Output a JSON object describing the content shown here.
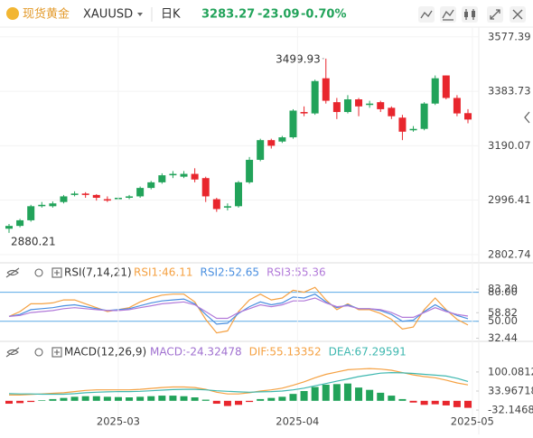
{
  "header": {
    "name": "现货黄金",
    "symbol": "XAUUSD",
    "period": "日K",
    "price": "3283.27",
    "change": "-23.09",
    "change_pct": "-0.70%"
  },
  "chart_data": [
    {
      "type": "candlestick",
      "open": [
        2895,
        2905,
        2925,
        2975,
        2975,
        2990,
        3015,
        3020,
        3015,
        3000,
        3000,
        3005,
        3010,
        3040,
        3060,
        3085,
        3080,
        3090,
        3075,
        3000,
        2970,
        2975,
        3060,
        3140,
        3210,
        3205,
        3220,
        3310,
        3305,
        3430,
        3345,
        3310,
        3355,
        3335,
        3345,
        3325,
        3290,
        3245,
        3250,
        3340,
        3440,
        3360,
        3306
      ],
      "high": [
        2912,
        2930,
        2980,
        2990,
        2992,
        3015,
        3028,
        3025,
        3018,
        3010,
        3010,
        3015,
        3045,
        3065,
        3092,
        3100,
        3100,
        3110,
        3080,
        3005,
        2985,
        3065,
        3150,
        3215,
        3215,
        3225,
        3320,
        3330,
        3425,
        3499.93,
        3360,
        3370,
        3360,
        3350,
        3350,
        3330,
        3300,
        3260,
        3345,
        3440,
        3440,
        3370,
        3320
      ],
      "low": [
        2880.21,
        2900,
        2920,
        2970,
        2970,
        2985,
        3010,
        3005,
        2995,
        2990,
        2995,
        3000,
        3005,
        3035,
        3055,
        3075,
        3075,
        3060,
        2990,
        2955,
        2960,
        2970,
        3055,
        3135,
        3180,
        3200,
        3215,
        3295,
        3300,
        3340,
        3285,
        3305,
        3295,
        3325,
        3310,
        3285,
        3210,
        3240,
        3245,
        3335,
        3355,
        3295,
        3270
      ],
      "close": [
        2905,
        2925,
        2975,
        2980,
        2985,
        3010,
        3020,
        3015,
        3005,
        2995,
        3005,
        3010,
        3040,
        3060,
        3085,
        3090,
        3090,
        3070,
        3010,
        2965,
        2975,
        3060,
        3140,
        3210,
        3190,
        3220,
        3315,
        3305,
        3420,
        3350,
        3310,
        3355,
        3330,
        3340,
        3320,
        3295,
        3240,
        3250,
        3340,
        3430,
        3360,
        3305,
        3283.27
      ],
      "up_color": "#22a35a",
      "down_color": "#e8262d",
      "ylim": [
        2777,
        3612
      ],
      "yticks": [
        3577.39,
        3383.73,
        3190.07,
        2996.41,
        2802.74
      ],
      "grid": true
    },
    {
      "type": "line",
      "title": "RSI(7,14,21)",
      "series": [
        {
          "name": "RSI1",
          "label": "RSI1:46.11",
          "color": "#f5a142",
          "values": [
            55,
            60,
            68,
            68,
            69,
            72,
            72,
            68,
            64,
            60,
            62,
            64,
            70,
            74,
            77,
            78,
            78,
            70,
            52,
            38,
            40,
            60,
            72,
            78,
            72,
            74,
            82,
            80,
            85,
            72,
            62,
            68,
            62,
            62,
            58,
            52,
            42,
            44,
            62,
            74,
            62,
            52,
            46.11
          ]
        },
        {
          "name": "RSI2",
          "label": "RSI2:52.65",
          "color": "#4a8fe0",
          "values": [
            55,
            57,
            62,
            63,
            64,
            66,
            67,
            65,
            63,
            61,
            62,
            63,
            66,
            69,
            71,
            72,
            73,
            68,
            57,
            47,
            48,
            58,
            65,
            70,
            67,
            69,
            75,
            74,
            78,
            70,
            64,
            67,
            63,
            63,
            61,
            57,
            50,
            51,
            60,
            67,
            61,
            56,
            52.65
          ]
        },
        {
          "name": "RSI3",
          "label": "RSI3:55.36",
          "color": "#b27ad9",
          "values": [
            55,
            56,
            59,
            60,
            61,
            63,
            64,
            63,
            62,
            61,
            61,
            62,
            64,
            66,
            68,
            69,
            70,
            67,
            60,
            53,
            53,
            59,
            63,
            67,
            65,
            67,
            71,
            71,
            74,
            69,
            65,
            66,
            63,
            63,
            62,
            59,
            54,
            54,
            59,
            64,
            60,
            57,
            55.36
          ]
        }
      ],
      "ylim": [
        32,
        88
      ],
      "yticks": [
        {
          "value": 80,
          "label": "80.00"
        },
        {
          "value": 83.2,
          "label": "83.20"
        },
        {
          "value": 58.82,
          "label": "58.82"
        },
        {
          "value": 50,
          "label": "50.00"
        },
        32.44
      ],
      "levels": [
        80,
        50
      ],
      "level_color": "#5aa9e6"
    },
    {
      "type": "macd",
      "title": "MACD(12,26,9)",
      "histogram": {
        "name": "MACD",
        "label": "MACD:-24.32478",
        "color": "#a070d0",
        "up_color": "#22a35a",
        "down_color": "#e8262d",
        "values": [
          -10,
          -8,
          -4,
          2,
          6,
          10,
          14,
          16,
          16,
          14,
          13,
          12,
          14,
          16,
          18,
          18,
          16,
          12,
          4,
          -10,
          -18,
          -14,
          -4,
          6,
          10,
          14,
          24,
          34,
          48,
          56,
          58,
          60,
          46,
          38,
          28,
          18,
          6,
          -6,
          -14,
          -12,
          -16,
          -22,
          -24.32478
        ]
      },
      "series": [
        {
          "name": "DIF",
          "label": "DIF:55.13352",
          "color": "#f5a142",
          "values": [
            20,
            20,
            22,
            24,
            26,
            28,
            32,
            36,
            38,
            38,
            38,
            38,
            40,
            43,
            46,
            48,
            48,
            46,
            40,
            30,
            24,
            24,
            28,
            34,
            38,
            44,
            54,
            66,
            80,
            92,
            100,
            108,
            110,
            112,
            110,
            106,
            98,
            90,
            84,
            80,
            72,
            62,
            55.13352
          ]
        },
        {
          "name": "DEA",
          "label": "DEA:67.29591",
          "color": "#3fb8b0",
          "values": [
            25,
            24,
            24,
            23,
            23,
            23,
            25,
            28,
            30,
            31,
            32,
            32,
            33,
            35,
            37,
            39,
            40,
            40,
            38,
            35,
            33,
            31,
            30,
            31,
            32,
            34,
            38,
            44,
            52,
            60,
            68,
            76,
            84,
            90,
            96,
            98,
            97,
            95,
            92,
            89,
            86,
            78,
            67.29591
          ]
        }
      ],
      "ylim": [
        -82,
        153
      ],
      "yticks": [
        100.08126,
        33.96718,
        -32.14689
      ],
      "xticks": [
        {
          "value": 10,
          "label": "2025-03"
        },
        {
          "value": 26.4,
          "label": "2025-04"
        },
        {
          "value": 42.4,
          "label": "2025-05"
        }
      ]
    }
  ]
}
